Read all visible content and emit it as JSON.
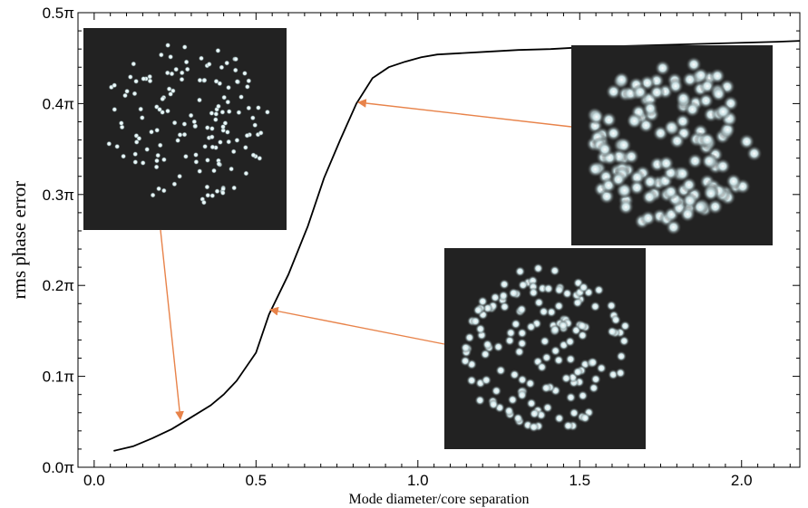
{
  "chart_data": {
    "type": "line",
    "title": "",
    "xlabel": "Mode diameter/core separation",
    "ylabel": "rms phase error",
    "xlim": [
      -0.05,
      2.18
    ],
    "ylim": [
      0.0,
      0.5
    ],
    "x_ticks": [
      0.0,
      0.5,
      1.0,
      1.5,
      2.0
    ],
    "x_tick_labels": [
      "0.0",
      "0.5",
      "1.0",
      "1.5",
      "2.0"
    ],
    "y_ticks": [
      0.0,
      0.1,
      0.2,
      0.3,
      0.4,
      0.5
    ],
    "y_tick_labels": [
      "0.0π",
      "0.1π",
      "0.2π",
      "0.3π",
      "0.4π",
      "0.5π"
    ],
    "grid": false,
    "series": [
      {
        "x": [
          0.06,
          0.12,
          0.18,
          0.24,
          0.3,
          0.36,
          0.4,
          0.44,
          0.5,
          0.54,
          0.6,
          0.66,
          0.71,
          0.76,
          0.81,
          0.86,
          0.91,
          0.96,
          1.01,
          1.06,
          1.11,
          1.21,
          1.31,
          1.41,
          1.51,
          1.61,
          1.71,
          1.81,
          1.91,
          2.01,
          2.11,
          2.18
        ],
        "values": [
          0.018,
          0.023,
          0.032,
          0.042,
          0.055,
          0.068,
          0.08,
          0.095,
          0.126,
          0.168,
          0.212,
          0.265,
          0.318,
          0.36,
          0.4,
          0.428,
          0.44,
          0.446,
          0.451,
          0.454,
          0.455,
          0.457,
          0.459,
          0.46,
          0.462,
          0.463,
          0.464,
          0.465,
          0.466,
          0.467,
          0.468,
          0.469
        ]
      }
    ],
    "annotations": [
      {
        "from_inset": "top-left",
        "to_point": [
          0.28,
          0.053
        ]
      },
      {
        "from_inset": "bottom-right",
        "to_point": [
          0.55,
          0.17
        ]
      },
      {
        "from_inset": "top-right",
        "to_point": [
          0.82,
          0.4
        ]
      }
    ]
  },
  "colors": {
    "curve": "#000000",
    "arrow": "#e8834a",
    "inset_background": "#222222",
    "spot": "#e4f2f4"
  },
  "insets": [
    {
      "id": "top-left",
      "description": "sparse pattern of small bright spots",
      "spot_size": "small"
    },
    {
      "id": "top-right",
      "description": "dense pattern of large overlapping blurred spots",
      "spot_size": "large"
    },
    {
      "id": "bottom-right",
      "description": "pattern of medium blurred spots",
      "spot_size": "medium"
    }
  ]
}
